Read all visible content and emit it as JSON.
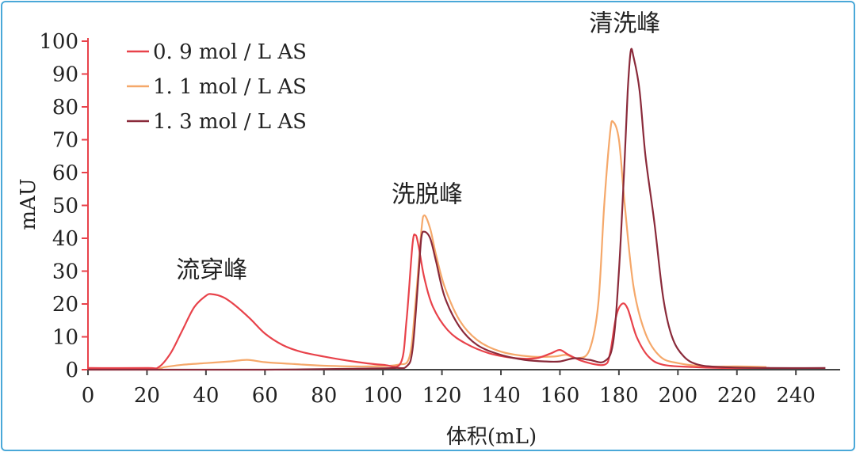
{
  "chart_data": {
    "type": "line",
    "xlabel": "体积(mL)",
    "ylabel": "mAU",
    "xlim": [
      0,
      255
    ],
    "ylim": [
      0,
      100
    ],
    "xticks": [
      "0",
      "20",
      "40",
      "60",
      "80",
      "100",
      "120",
      "140",
      "160",
      "180",
      "200",
      "220",
      "240"
    ],
    "yticks": [
      "0",
      "10",
      "20",
      "30",
      "40",
      "50",
      "60",
      "70",
      "80",
      "90",
      "100"
    ],
    "grid": false,
    "legend_placement": "top-left",
    "series": [
      {
        "name": "0. 9 mol / L AS",
        "color": "#e8424a",
        "points": [
          [
            0,
            0.5
          ],
          [
            20,
            0.5
          ],
          [
            24,
            0.8
          ],
          [
            28,
            5
          ],
          [
            32,
            12
          ],
          [
            36,
            19
          ],
          [
            40,
            22.5
          ],
          [
            42,
            23
          ],
          [
            46,
            22
          ],
          [
            50,
            19.5
          ],
          [
            55,
            15.5
          ],
          [
            60,
            11
          ],
          [
            66,
            7.5
          ],
          [
            72,
            5.5
          ],
          [
            80,
            4
          ],
          [
            90,
            2.5
          ],
          [
            100,
            1.5
          ],
          [
            106,
            2
          ],
          [
            108,
            15
          ],
          [
            110,
            38
          ],
          [
            111,
            41
          ],
          [
            112,
            38
          ],
          [
            114,
            28
          ],
          [
            117,
            19
          ],
          [
            122,
            12
          ],
          [
            128,
            8
          ],
          [
            136,
            5
          ],
          [
            145,
            3.5
          ],
          [
            152,
            3.5
          ],
          [
            157,
            5
          ],
          [
            160,
            6
          ],
          [
            163,
            4.5
          ],
          [
            168,
            2.5
          ],
          [
            175,
            1.5
          ],
          [
            177,
            5
          ],
          [
            179,
            16
          ],
          [
            181,
            20
          ],
          [
            183,
            18.5
          ],
          [
            186,
            10
          ],
          [
            190,
            4
          ],
          [
            195,
            1.5
          ],
          [
            205,
            0.8
          ],
          [
            215,
            0.5
          ],
          [
            225,
            0.5
          ],
          [
            231,
            0.5
          ]
        ]
      },
      {
        "name": "1. 1 mol / L AS",
        "color": "#f5a86a",
        "points": [
          [
            0,
            0.3
          ],
          [
            22,
            0.3
          ],
          [
            26,
            0.8
          ],
          [
            32,
            1.5
          ],
          [
            40,
            2
          ],
          [
            48,
            2.5
          ],
          [
            54,
            3
          ],
          [
            60,
            2.3
          ],
          [
            70,
            1.7
          ],
          [
            80,
            1.2
          ],
          [
            95,
            1
          ],
          [
            105,
            1.5
          ],
          [
            109,
            4
          ],
          [
            111,
            20
          ],
          [
            113,
            42
          ],
          [
            114,
            47
          ],
          [
            116,
            43
          ],
          [
            118,
            35
          ],
          [
            121,
            25
          ],
          [
            126,
            15
          ],
          [
            132,
            9
          ],
          [
            140,
            5.5
          ],
          [
            150,
            4
          ],
          [
            158,
            4
          ],
          [
            162,
            4.5
          ],
          [
            166,
            3.5
          ],
          [
            170,
            6
          ],
          [
            173,
            20
          ],
          [
            175,
            50
          ],
          [
            177,
            72
          ],
          [
            178,
            75.5
          ],
          [
            180,
            70
          ],
          [
            182,
            50
          ],
          [
            185,
            25
          ],
          [
            189,
            11
          ],
          [
            194,
            4
          ],
          [
            200,
            2
          ],
          [
            210,
            1
          ],
          [
            220,
            1
          ],
          [
            230,
            0.8
          ]
        ]
      },
      {
        "name": "1. 3 mol / L AS",
        "color": "#8a2a3a",
        "points": [
          [
            0,
            0
          ],
          [
            30,
            0
          ],
          [
            60,
            0
          ],
          [
            90,
            0.3
          ],
          [
            104,
            0.5
          ],
          [
            108,
            1
          ],
          [
            110,
            6
          ],
          [
            112,
            28
          ],
          [
            113,
            40
          ],
          [
            114,
            42
          ],
          [
            116,
            40
          ],
          [
            118,
            33
          ],
          [
            121,
            22
          ],
          [
            126,
            13
          ],
          [
            132,
            7.5
          ],
          [
            140,
            4.5
          ],
          [
            148,
            3
          ],
          [
            155,
            2.5
          ],
          [
            160,
            2.5
          ],
          [
            165,
            3.5
          ],
          [
            170,
            3
          ],
          [
            175,
            2.5
          ],
          [
            178,
            8
          ],
          [
            180,
            30
          ],
          [
            182,
            65
          ],
          [
            183,
            85
          ],
          [
            184,
            97
          ],
          [
            185,
            95
          ],
          [
            187,
            85
          ],
          [
            189,
            65
          ],
          [
            192,
            45
          ],
          [
            195,
            22
          ],
          [
            198,
            10
          ],
          [
            202,
            4
          ],
          [
            207,
            1.5
          ],
          [
            215,
            0.8
          ],
          [
            230,
            0.5
          ],
          [
            250,
            0.5
          ]
        ]
      }
    ],
    "annotations": [
      {
        "text": "流穿峰",
        "x": 42,
        "y": 28
      },
      {
        "text": "洗脱峰",
        "x": 115,
        "y": 51
      },
      {
        "text": "清洗峰",
        "x": 182,
        "y": 103
      }
    ]
  }
}
